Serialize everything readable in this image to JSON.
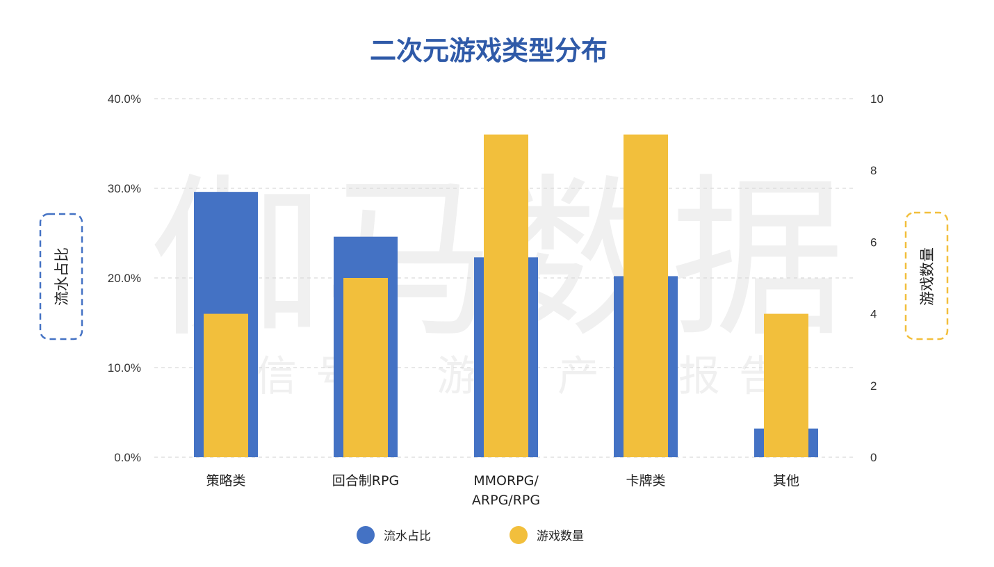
{
  "chart_data": {
    "type": "bar",
    "title": "二次元游戏类型分布",
    "categories": [
      "策略类",
      "回合制RPG",
      "MMORPG/\nARPG/RPG",
      "卡牌类",
      "其他"
    ],
    "series": [
      {
        "name": "流水占比",
        "axis": "left",
        "unit": "%",
        "values": [
          29.6,
          24.6,
          22.3,
          20.2,
          3.2
        ]
      },
      {
        "name": "游戏数量",
        "axis": "right",
        "values": [
          4,
          5,
          9,
          9,
          4
        ]
      }
    ],
    "y_left": {
      "label": "流水占比",
      "range": [
        0,
        40
      ],
      "ticks": [
        "0.0%",
        "10.0%",
        "20.0%",
        "30.0%",
        "40.0%"
      ]
    },
    "y_right": {
      "label": "游戏数量",
      "range": [
        0,
        10
      ],
      "ticks": [
        "0",
        "2",
        "4",
        "6",
        "8",
        "10"
      ]
    },
    "grid": true,
    "legend": "bottom",
    "watermark": {
      "line1": "伽马数据",
      "line2": "微信号：游戏产业报告"
    }
  },
  "colors": {
    "title": "#2f5aa8",
    "share_bar": "#4472c4",
    "count_bar": "#f2bf3c",
    "grid": "#d9d9d9",
    "left_box": "#4472c4",
    "right_box": "#f2bf3c"
  }
}
